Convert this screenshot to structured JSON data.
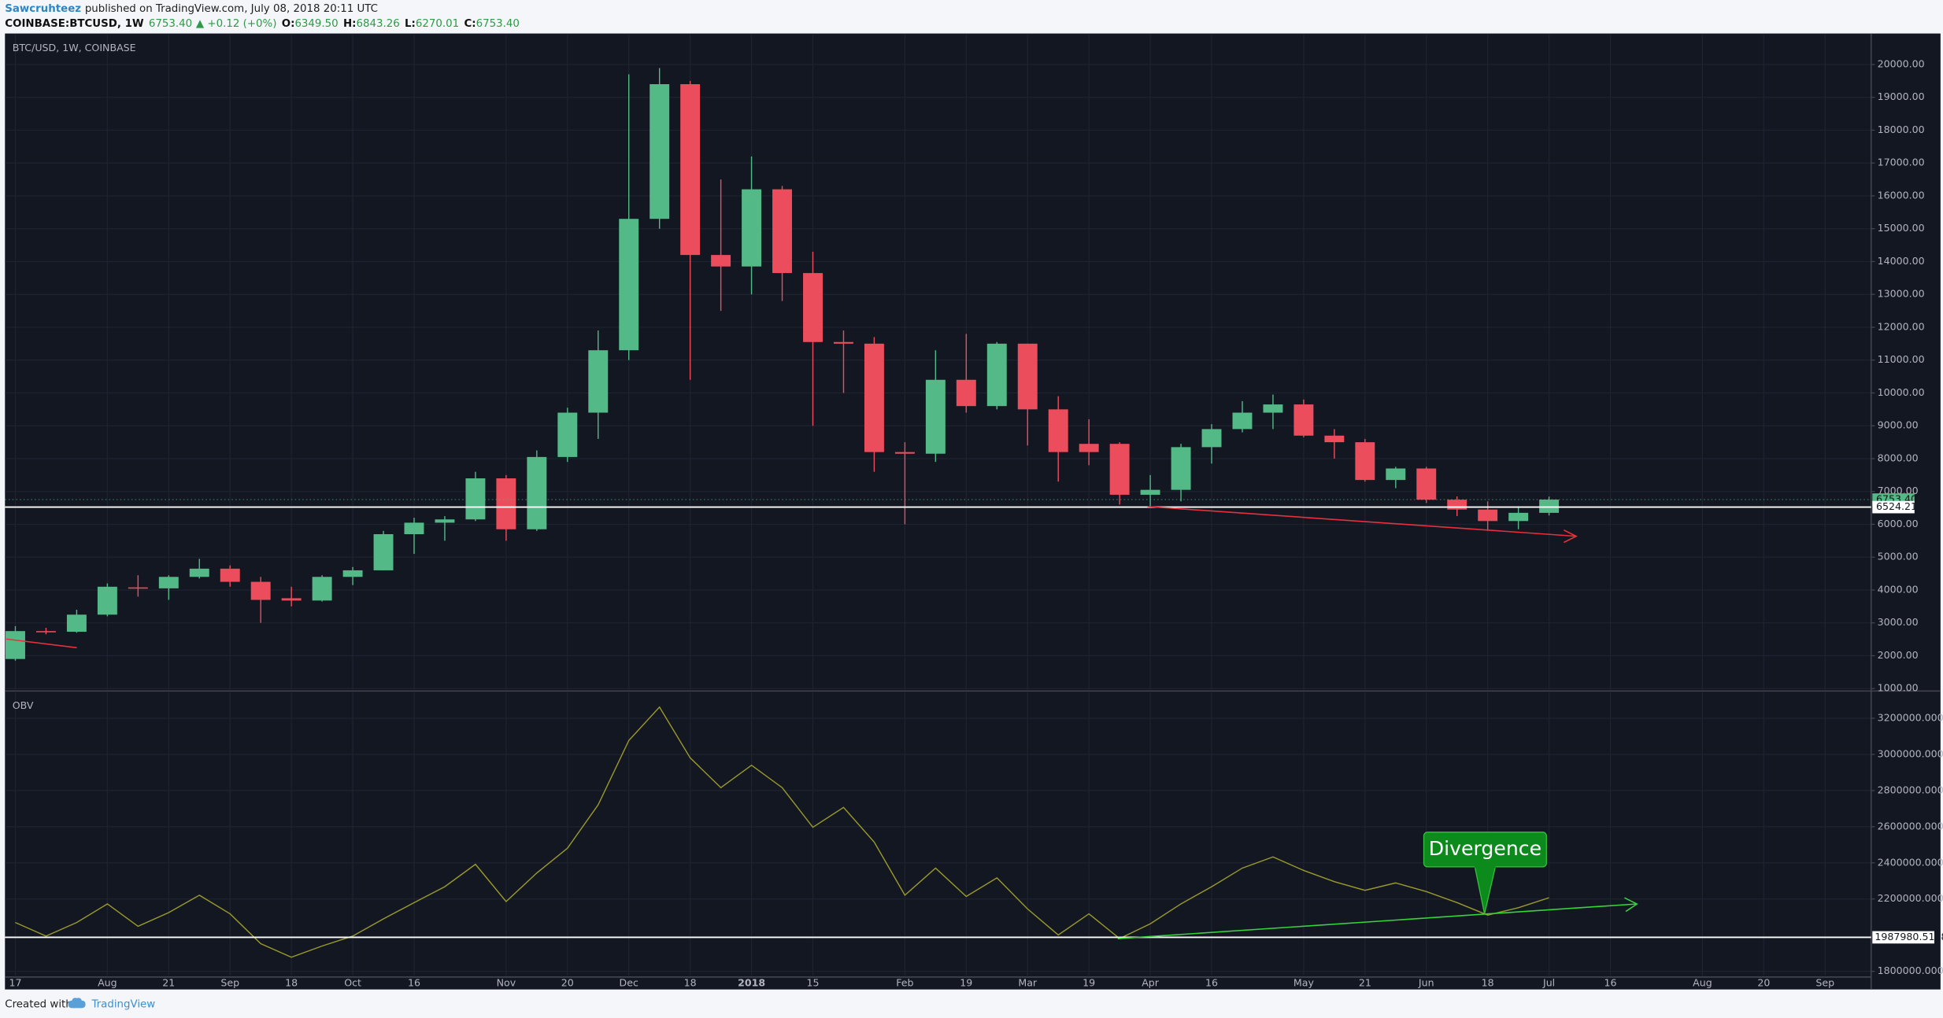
{
  "header": {
    "author": "Sawcruhteez",
    "published": "published on TradingView.com, July 08, 2018 20:11 UTC",
    "symbol": "COINBASE:BTCUSD, 1W",
    "last": "6753.40",
    "change": "▲ +0.12 (+0%)",
    "ohlc": [
      {
        "key": "O:",
        "value": "6349.50"
      },
      {
        "key": "H:",
        "value": "6843.26"
      },
      {
        "key": "L:",
        "value": "6270.01"
      },
      {
        "key": "C:",
        "value": "6753.40"
      }
    ]
  },
  "footer": {
    "created": "Created with",
    "brand": "TradingView"
  },
  "annotation": "Divergence",
  "chart_data": [
    {
      "type": "candlestick",
      "title": "BTC/USD, 1W, COINBASE",
      "open": [
        1900,
        2750,
        2730,
        3250,
        4080,
        4050,
        4400,
        4650,
        4250,
        3750,
        3680,
        4400,
        4600,
        5700,
        6050,
        6150,
        7400,
        5850,
        8050,
        9400,
        11300,
        15300,
        19400,
        14200,
        13850,
        16200,
        13650,
        11550,
        11500,
        8200,
        8150,
        10400,
        9600,
        11500,
        9500,
        8450,
        8450,
        6900,
        7050,
        8350,
        8900,
        9400,
        9650,
        8700,
        8500,
        7350,
        7700,
        6750,
        6450,
        6100,
        6349.5,
        null,
        null,
        null,
        null,
        null,
        null,
        null,
        null,
        null,
        null
      ],
      "high": [
        2900,
        2850,
        3400,
        4200,
        4450,
        4450,
        4950,
        4750,
        4400,
        4100,
        4450,
        4700,
        5800,
        6200,
        6250,
        7600,
        7500,
        8250,
        9550,
        11900,
        19700,
        19891,
        19500,
        16500,
        17200,
        16300,
        14300,
        11900,
        11700,
        8500,
        11300,
        11800,
        11550,
        11500,
        9900,
        9200,
        8500,
        7500,
        8450,
        9050,
        9750,
        9950,
        9800,
        8900,
        8600,
        7750,
        7750,
        6850,
        6700,
        6550,
        6843.26,
        null,
        null,
        null,
        null,
        null,
        null,
        null,
        null,
        null,
        null
      ],
      "low": [
        1850,
        2650,
        2700,
        3200,
        3800,
        3700,
        4350,
        4100,
        3000,
        3500,
        3650,
        4150,
        4600,
        5100,
        5500,
        6100,
        5500,
        5800,
        7900,
        8600,
        11000,
        15000,
        10400,
        12500,
        13000,
        12800,
        9000,
        10000,
        7600,
        6000,
        7900,
        9400,
        9500,
        8400,
        7300,
        7800,
        6600,
        6550,
        6700,
        7850,
        8800,
        8900,
        8650,
        8000,
        7300,
        7100,
        6650,
        6250,
        5800,
        5850,
        6270.01,
        null,
        null,
        null,
        null,
        null,
        null,
        null,
        null,
        null,
        null
      ],
      "close": [
        2750,
        2730,
        3250,
        4100,
        4050,
        4400,
        4650,
        4250,
        3700,
        3680,
        4400,
        4600,
        5700,
        6050,
        6150,
        7400,
        5850,
        8050,
        9400,
        11300,
        15300,
        19400,
        14200,
        13850,
        16200,
        13650,
        11550,
        11500,
        8200,
        8150,
        10400,
        9600,
        11500,
        9500,
        8200,
        8200,
        6900,
        7050,
        8350,
        8900,
        9400,
        9650,
        8700,
        8500,
        7350,
        7700,
        6750,
        6450,
        6100,
        6350,
        6753.4,
        null,
        null,
        null,
        null,
        null,
        null,
        null,
        null,
        null,
        null
      ],
      "up_color": "#53b987",
      "down_color": "#eb4d5c",
      "ylim": [
        925,
        20905
      ],
      "yticks": [
        {
          "value": 1000,
          "label": "1000.00"
        },
        {
          "value": 2000,
          "label": "2000.00"
        },
        {
          "value": 3000,
          "label": "3000.00"
        },
        {
          "value": 4000,
          "label": "4000.00"
        },
        {
          "value": 5000,
          "label": "5000.00"
        },
        {
          "value": 6000,
          "label": "6000.00"
        },
        {
          "value": 7000,
          "label": "7000.00"
        },
        {
          "value": 8000,
          "label": "8000.00"
        },
        {
          "value": 9000,
          "label": "9000.00"
        },
        {
          "value": 10000,
          "label": "10000.00"
        },
        {
          "value": 11000,
          "label": "11000.00"
        },
        {
          "value": 12000,
          "label": "12000.00"
        },
        {
          "value": 13000,
          "label": "13000.00"
        },
        {
          "value": 14000,
          "label": "14000.00"
        },
        {
          "value": 15000,
          "label": "15000.00"
        },
        {
          "value": 16000,
          "label": "16000.00"
        },
        {
          "value": 17000,
          "label": "17000.00"
        },
        {
          "value": 18000,
          "label": "18000.00"
        },
        {
          "value": 19000,
          "label": "19000.00"
        },
        {
          "value": 20000,
          "label": "20000.00"
        }
      ],
      "grid": true,
      "last_price": {
        "value": 6753.4,
        "label": "6753.40"
      },
      "price_line": {
        "value": 6524.21,
        "label": "6524.21"
      }
    },
    {
      "type": "line",
      "title": "OBV",
      "categories": [
        "17",
        null,
        null,
        "Aug",
        null,
        "21",
        null,
        "Sep",
        null,
        "18",
        null,
        "Oct",
        null,
        "16",
        null,
        null,
        "Nov",
        null,
        "20",
        null,
        "Dec",
        null,
        "18",
        null,
        "2018",
        null,
        "15",
        null,
        null,
        "Feb",
        null,
        "19",
        null,
        "Mar",
        null,
        "19",
        null,
        "Apr",
        null,
        "16",
        null,
        null,
        "May",
        null,
        "21",
        null,
        "Jun",
        null,
        "18",
        null,
        "Jul",
        null,
        "16",
        null,
        null,
        "Aug",
        null,
        "20",
        null,
        "Sep",
        null
      ],
      "values": [
        2070000,
        1995000,
        2070000,
        2173000,
        2049000,
        2125000,
        2221000,
        2118000,
        1953000,
        1878000,
        1940000,
        1995000,
        2090000,
        2180000,
        2268000,
        2392000,
        2186000,
        2344000,
        2481000,
        2721000,
        3077000,
        3262000,
        2981000,
        2816000,
        2940000,
        2816000,
        2597000,
        2707000,
        2515000,
        2221000,
        2371000,
        2214000,
        2317000,
        2145000,
        2001000,
        2118000,
        1981000,
        2063000,
        2173000,
        2268000,
        2371000,
        2433000,
        2358000,
        2296000,
        2248000,
        2289000,
        2241000,
        2180000,
        2111000,
        2152000,
        2207000,
        null,
        null,
        null,
        null,
        null,
        null,
        null,
        null,
        null,
        null
      ],
      "color": "#9a9a2c",
      "ylim": [
        1775000,
        3337000
      ],
      "yticks": [
        {
          "value": 1800000,
          "label": "1800000.0000"
        },
        {
          "value": 2200000,
          "label": "2200000.0000"
        },
        {
          "value": 2400000,
          "label": "2400000.0000"
        },
        {
          "value": 2600000,
          "label": "2600000.0000"
        },
        {
          "value": 2800000,
          "label": "2800000.0000"
        },
        {
          "value": 3000000,
          "label": "3000000.0000"
        },
        {
          "value": 3200000,
          "label": "3200000.0000"
        }
      ],
      "grid": true,
      "level": 1987980.5138
    }
  ]
}
